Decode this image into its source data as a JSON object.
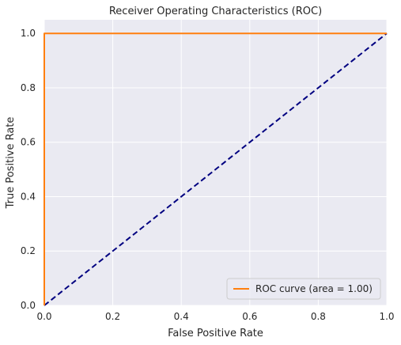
{
  "chart_data": {
    "type": "line",
    "title": "Receiver Operating Characteristics (ROC)",
    "xlabel": "False Positive Rate",
    "ylabel": "True Positive Rate",
    "xlim": [
      0.0,
      1.0
    ],
    "ylim": [
      0.0,
      1.05
    ],
    "x_ticks": [
      "0.0",
      "0.2",
      "0.4",
      "0.6",
      "0.8",
      "1.0"
    ],
    "y_ticks": [
      "0.0",
      "0.2",
      "0.4",
      "0.6",
      "0.8",
      "1.0"
    ],
    "grid": true,
    "legend_position": "lower-right",
    "series": [
      {
        "name": "ROC curve (area = 1.00)",
        "color": "#ff7f0e",
        "style": "solid",
        "x": [
          0.0,
          0.0,
          1.0
        ],
        "y": [
          0.0,
          1.0,
          1.0
        ]
      },
      {
        "color": "#000080",
        "style": "dashed",
        "x": [
          0.0,
          1.0
        ],
        "y": [
          0.0,
          1.0
        ]
      }
    ],
    "colors": {
      "plot_background": "#eaeaf2",
      "grid": "#ffffff",
      "text": "#262626"
    }
  }
}
